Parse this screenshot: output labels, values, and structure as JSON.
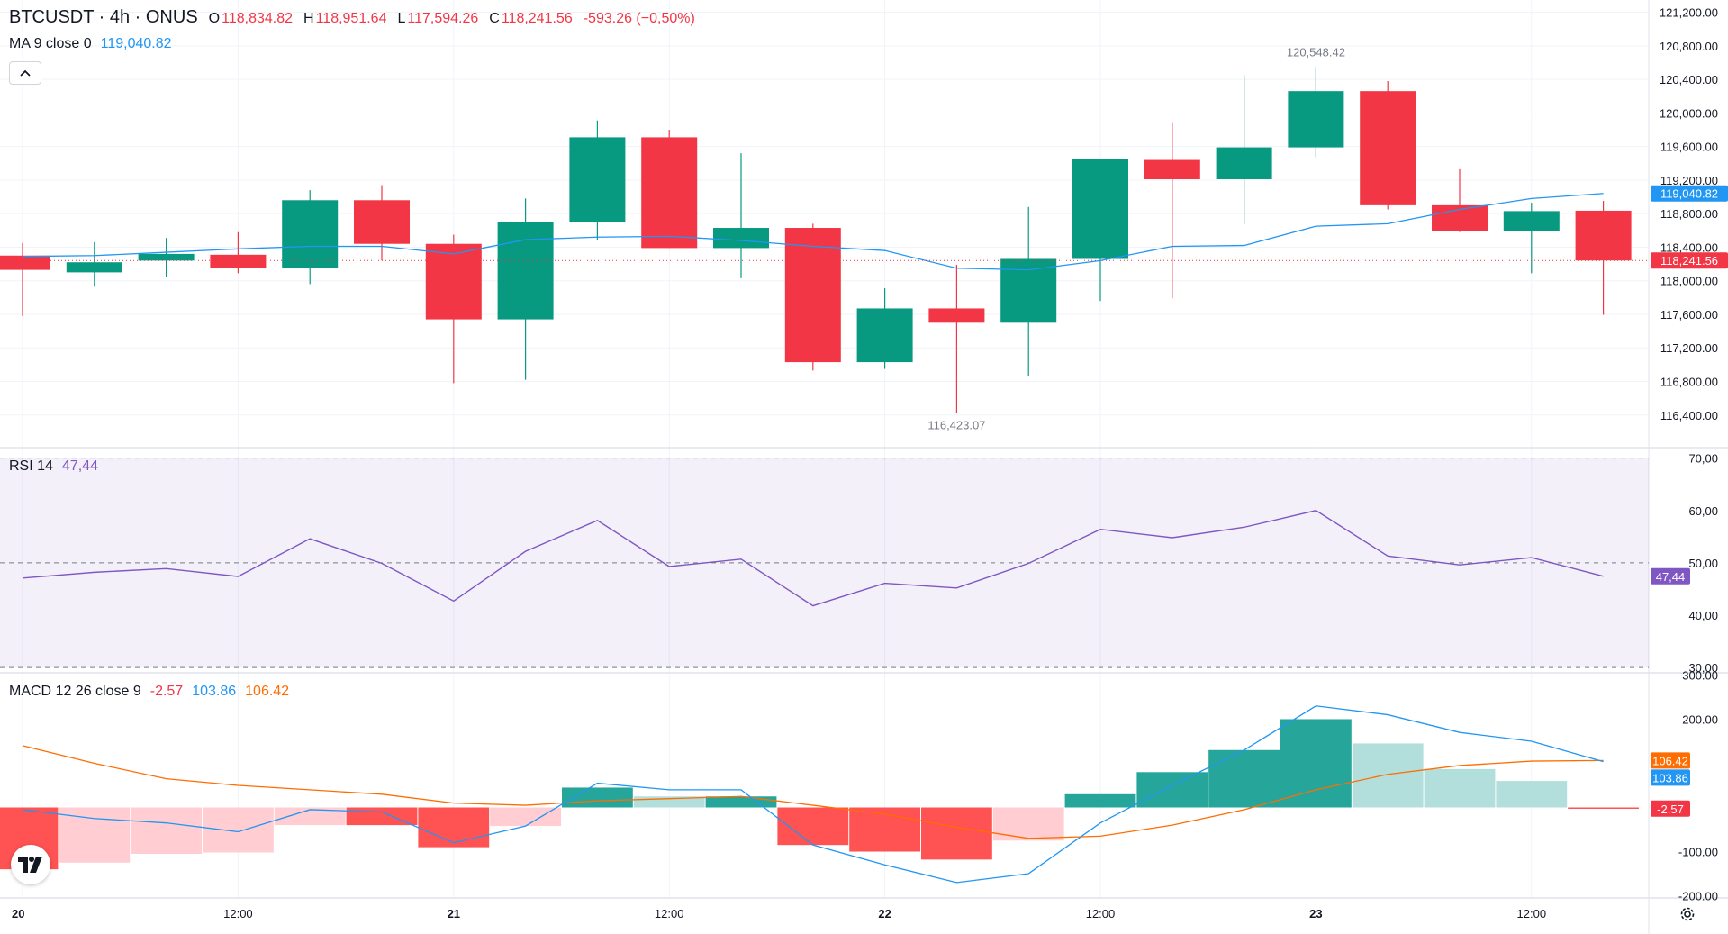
{
  "header": {
    "symbol": "BTCUSDT · 4h · ONUS",
    "open_label": "O",
    "open": "118,834.82",
    "high_label": "H",
    "high": "118,951.64",
    "low_label": "L",
    "low": "117,594.26",
    "close_label": "C",
    "close": "118,241.56",
    "change": "-593.26 (−0,50%)"
  },
  "ma_legend": {
    "label": "MA 9 close 0",
    "value": "119,040.82"
  },
  "rsi_legend": {
    "label": "RSI 14",
    "value": "47,44"
  },
  "macd_legend": {
    "label": "MACD 12 26 close 9",
    "hist": "-2.57",
    "macd": "103.86",
    "signal": "106.42"
  },
  "icons": {
    "collapse": "chevron-up-icon",
    "logo": "tradingview-logo-icon",
    "settings": "gear-icon"
  },
  "colors": {
    "up": "#089981",
    "down": "#f23645",
    "ma": "#2196f3",
    "rsi": "#7e57c2",
    "macd": "#2196f3",
    "signal": "#ff6d00",
    "hist_up_strong": "#26a69a",
    "hist_up_weak": "#b2dfdb",
    "hist_down_strong": "#ff5252",
    "hist_down_weak": "#ffcdd2"
  },
  "chart_data": {
    "type": "candlestick",
    "timeframe": "4h",
    "x_labels": [
      {
        "index": 0,
        "text": "20",
        "bold": true
      },
      {
        "index": 3,
        "text": "12:00",
        "bold": false
      },
      {
        "index": 6,
        "text": "21",
        "bold": true
      },
      {
        "index": 9,
        "text": "12:00",
        "bold": false
      },
      {
        "index": 12,
        "text": "22",
        "bold": true
      },
      {
        "index": 15,
        "text": "12:00",
        "bold": false
      },
      {
        "index": 18,
        "text": "23",
        "bold": true
      },
      {
        "index": 21,
        "text": "12:00",
        "bold": false
      }
    ],
    "candles": [
      {
        "o": 118300,
        "h": 118450,
        "l": 117580,
        "c": 118130
      },
      {
        "o": 118100,
        "h": 118460,
        "l": 117930,
        "c": 118220
      },
      {
        "o": 118240,
        "h": 118510,
        "l": 118040,
        "c": 118320
      },
      {
        "o": 118310,
        "h": 118580,
        "l": 118090,
        "c": 118150
      },
      {
        "o": 118150,
        "h": 119080,
        "l": 117960,
        "c": 118960
      },
      {
        "o": 118960,
        "h": 119140,
        "l": 118240,
        "c": 118440
      },
      {
        "o": 118440,
        "h": 118550,
        "l": 116780,
        "c": 117540
      },
      {
        "o": 117540,
        "h": 118980,
        "l": 116820,
        "c": 118700
      },
      {
        "o": 118700,
        "h": 119910,
        "l": 118480,
        "c": 119710
      },
      {
        "o": 119710,
        "h": 119800,
        "l": 118390,
        "c": 118390
      },
      {
        "o": 118390,
        "h": 119520,
        "l": 118030,
        "c": 118630
      },
      {
        "o": 118630,
        "h": 118680,
        "l": 116930,
        "c": 117030
      },
      {
        "o": 117030,
        "h": 117910,
        "l": 116950,
        "c": 117670
      },
      {
        "o": 117670,
        "h": 118190,
        "l": 116423.07,
        "c": 117500
      },
      {
        "o": 117500,
        "h": 118880,
        "l": 116860,
        "c": 118260
      },
      {
        "o": 118260,
        "h": 119450,
        "l": 117760,
        "c": 119450
      },
      {
        "o": 119440,
        "h": 119880,
        "l": 117790,
        "c": 119210
      },
      {
        "o": 119210,
        "h": 120450,
        "l": 118670,
        "c": 119590
      },
      {
        "o": 119590,
        "h": 120548.42,
        "l": 119470,
        "c": 120260
      },
      {
        "o": 120260,
        "h": 120380,
        "l": 118850,
        "c": 118900
      },
      {
        "o": 118900,
        "h": 119330,
        "l": 118580,
        "c": 118590
      },
      {
        "o": 118590,
        "h": 118930,
        "l": 118090,
        "c": 118830
      },
      {
        "o": 118834.82,
        "h": 118951.64,
        "l": 117594.26,
        "c": 118241.56
      }
    ],
    "ma9": [
      118290,
      118300,
      118340,
      118380,
      118410,
      118410,
      118320,
      118490,
      118520,
      118530,
      118480,
      118410,
      118360,
      118150,
      118130,
      118240,
      118410,
      118420,
      118650,
      118680,
      118850,
      118980,
      119040.82
    ],
    "high_marker": {
      "index": 18,
      "text": "120,548.42"
    },
    "low_marker": {
      "index": 13,
      "text": "116,423.07"
    },
    "price_axis": [
      "121,200.00",
      "120,800.00",
      "120,400.00",
      "120,000.00",
      "119,600.00",
      "119,200.00",
      "118,800.00",
      "118,400.00",
      "118,000.00",
      "117,600.00",
      "117,200.00",
      "116,800.00",
      "116,400.00"
    ],
    "price_range": [
      116140,
      121260
    ],
    "price_badges": [
      {
        "value": 119040.82,
        "text": "119,040.82",
        "color": "#2196f3"
      },
      {
        "value": 118241.56,
        "text": "118,241.56",
        "color": "#f23645"
      }
    ],
    "rsi": {
      "values": [
        47.1,
        48.2,
        48.9,
        47.4,
        54.6,
        49.9,
        42.7,
        52.2,
        58.1,
        49.3,
        50.7,
        41.8,
        46.1,
        45.2,
        49.9,
        56.4,
        54.8,
        56.8,
        60.0,
        51.3,
        49.6,
        51.0,
        47.44
      ],
      "range": [
        29,
        72
      ],
      "levels": [
        70,
        50,
        30
      ],
      "axis": [
        "70,00",
        "60,00",
        "50,00",
        "40,00",
        "30,00"
      ],
      "badge": "47,44"
    },
    "macd": {
      "hist": [
        -140,
        -125,
        -105,
        -102,
        -40,
        -40,
        -90,
        -42,
        45,
        25,
        25,
        -85,
        -100,
        -118,
        -75,
        30,
        80,
        130,
        200,
        145,
        87,
        60,
        -2.57
      ],
      "macd": [
        -5,
        -25,
        -35,
        -55,
        -5,
        -10,
        -80,
        -42,
        55,
        40,
        40,
        -85,
        -130,
        -170,
        -150,
        -35,
        50,
        130,
        230,
        210,
        170,
        150,
        103.86
      ],
      "signal": [
        140,
        100,
        65,
        50,
        40,
        30,
        10,
        5,
        15,
        20,
        25,
        5,
        -15,
        -45,
        -70,
        -65,
        -40,
        -5,
        40,
        75,
        95,
        105,
        106.42
      ],
      "range": [
        -205,
        305
      ],
      "axis": [
        "300.00",
        "200.00",
        "-100.00",
        "-200.00"
      ],
      "badges": [
        {
          "value": 106.42,
          "text": "106.42",
          "color": "#ff6d00"
        },
        {
          "value": 103.86,
          "text": "103.86",
          "color": "#2196f3"
        },
        {
          "value": -2.57,
          "text": "-2.57",
          "color": "#f23645"
        }
      ]
    }
  }
}
